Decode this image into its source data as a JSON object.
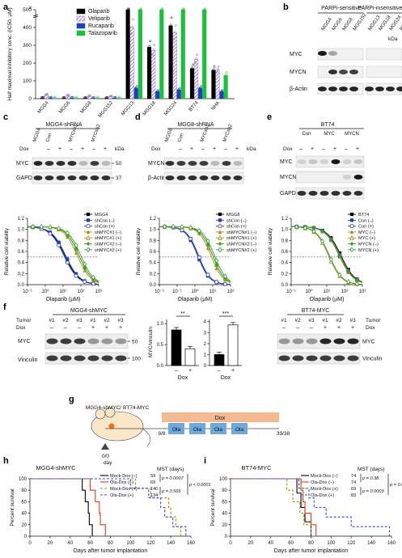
{
  "panels": {
    "a": "a",
    "b": "b",
    "c": "c",
    "d": "d",
    "e": "e",
    "f": "f",
    "g": "g",
    "h": "h",
    "i": "i"
  },
  "a": {
    "ylabel": "Half maximal inhibitory conc. (IC50, µM)",
    "ytick_top": "≥",
    "yticks": [
      "0",
      "100",
      "200",
      "300",
      "400",
      "500"
    ],
    "categories": [
      "MGG4",
      "MGG6",
      "MGG8",
      "MGG152",
      "MGG13",
      "MGG18",
      "MGG24",
      "BT74",
      "NHA"
    ],
    "legend": [
      {
        "label": "Olaparib",
        "color": "#000000"
      },
      {
        "label": "Veliparib",
        "color": "#8a5cc9"
      },
      {
        "label": "Rucaparib",
        "color": "#1f3fbf"
      },
      {
        "label": "Talazoparib",
        "color": "#19c13a"
      }
    ]
  },
  "chart_data": {
    "type": "bar",
    "title": "",
    "ylabel": "Half maximal inhibitory conc. (IC50, µM)",
    "ylim": [
      0,
      500
    ],
    "categories": [
      "MGG4",
      "MGG6",
      "MGG8",
      "MGG152",
      "MGG13",
      "MGG18",
      "MGG24",
      "BT74",
      "NHA"
    ],
    "series": [
      {
        "name": "Olaparib",
        "values": [
          3,
          2,
          2,
          2,
          500,
          290,
          410,
          170,
          160
        ]
      },
      {
        "name": "Veliparib",
        "values": [
          20,
          15,
          12,
          10,
          400,
          270,
          370,
          220,
          160
        ]
      },
      {
        "name": "Rucaparib",
        "values": [
          4,
          3,
          2,
          3,
          60,
          40,
          50,
          60,
          40
        ]
      },
      {
        "name": "Talazoparib",
        "values": [
          1,
          1,
          1,
          1,
          500,
          500,
          500,
          500,
          130
        ]
      }
    ]
  },
  "b": {
    "groups": [
      "PARPi-sensitive",
      "PARPi-insensitive"
    ],
    "lanes": [
      "MGG4",
      "MGG6",
      "MGG8",
      "MGG152",
      "MGG13",
      "MGG18",
      "MGG24",
      "BT74"
    ],
    "rows": [
      "MYC",
      "MYCN",
      "β-Actin"
    ],
    "kda_label": "kDa",
    "markers": [
      "50",
      "50",
      "37"
    ]
  },
  "c": {
    "title": "MGG4-shRNA",
    "lane_labels": [
      "MGG4",
      "Con",
      "MYCsh1",
      "MYCsh2"
    ],
    "dox_label": "Dox",
    "dox_signs": [
      "–",
      "+",
      "–",
      "+",
      "–",
      "+"
    ],
    "rows": [
      "MYC",
      "GAPDH"
    ],
    "kda_label": "kDa",
    "markers": [
      "50",
      "37"
    ],
    "ylabel": "Relative cell viability",
    "xlabel": "Olaparib (µM)",
    "xticks": [
      "10⁻¹",
      "10⁰",
      "10¹",
      "10²",
      "10³"
    ],
    "yticks": [
      "0.0",
      "0.2",
      "0.4",
      "0.6",
      "0.8",
      "1.0",
      "1.2"
    ],
    "legend": [
      {
        "label": "MGG4",
        "color": "#000000",
        "marker": "square"
      },
      {
        "label": "shCon (–)",
        "color": "#1f3fbf",
        "marker": "square"
      },
      {
        "label": "shCon (+)",
        "color": "#1f3fbf",
        "marker": "circle-open"
      },
      {
        "label": "shMYC#1 (–)",
        "color": "#b8860b",
        "marker": "tri"
      },
      {
        "label": "shMYC#1 (+)",
        "color": "#b8860b",
        "marker": "tri-open"
      },
      {
        "label": "shMYC#2 (–)",
        "color": "#2ea02e",
        "marker": "diamond"
      },
      {
        "label": "shMYC#2 (+)",
        "color": "#2ea02e",
        "marker": "diamond-open"
      }
    ]
  },
  "d": {
    "title": "MGG8-shRNA",
    "lane_labels": [
      "MGG8",
      "Con",
      "MYCsh1",
      "MYCsh2"
    ],
    "dox_label": "Dox",
    "dox_signs": [
      "–",
      "+",
      "–",
      "+",
      "–",
      "+"
    ],
    "rows": [
      "MYCN",
      "β-Actin"
    ],
    "kda_label": "kDa",
    "ylabel": "Relative cell viability",
    "xlabel": "Olaparib (µM)",
    "xticks": [
      "10⁻²",
      "10⁻¹",
      "10⁰",
      "10¹",
      "10²"
    ],
    "yticks": [
      "0.0",
      "0.2",
      "0.4",
      "0.6",
      "0.8",
      "1.0",
      "1.2"
    ],
    "legend": [
      {
        "label": "MGG8",
        "color": "#000000",
        "marker": "square"
      },
      {
        "label": "shCon (–)",
        "color": "#1f3fbf",
        "marker": "square"
      },
      {
        "label": "shCon (+)",
        "color": "#1f3fbf",
        "marker": "circle-open"
      },
      {
        "label": "shMYCN#1 (–)",
        "color": "#b8860b",
        "marker": "tri"
      },
      {
        "label": "shMYCN#1 (+)",
        "color": "#b8860b",
        "marker": "tri-open"
      },
      {
        "label": "shMYCN#2 (–)",
        "color": "#2ea02e",
        "marker": "diamond"
      },
      {
        "label": "shMYCN#2 (+)",
        "color": "#2ea02e",
        "marker": "diamond-open"
      }
    ]
  },
  "e": {
    "title": "BT74",
    "lane_labels": [
      "Con",
      "MYC",
      "MYCN"
    ],
    "dox_label": "Dox",
    "dox_signs": [
      "–",
      "+",
      "–",
      "+",
      "–",
      "+"
    ],
    "rows": [
      "MYC",
      "MYCN",
      "GAPDH"
    ],
    "ylabel": "Relative cell viability",
    "xlabel": "Olaparib (µM)",
    "xticks": [
      "10⁻¹",
      "10⁰",
      "10¹",
      "10²",
      "10³"
    ],
    "yticks": [
      "0.0",
      "0.2",
      "0.4",
      "0.6",
      "0.8",
      "1.0",
      "1.2"
    ],
    "legend": [
      {
        "label": "BT74",
        "color": "#000000",
        "marker": "square"
      },
      {
        "label": "Con (–)",
        "color": "#1f3fbf",
        "marker": "square"
      },
      {
        "label": "Con (+)",
        "color": "#1f3fbf",
        "marker": "circle-open"
      },
      {
        "label": "MYC (–)",
        "color": "#b8860b",
        "marker": "tri"
      },
      {
        "label": "MYC (+)",
        "color": "#b8860b",
        "marker": "tri-open"
      },
      {
        "label": "MYCN (–)",
        "color": "#2ea02e",
        "marker": "diamond"
      },
      {
        "label": "MYCN (+)",
        "color": "#2ea02e",
        "marker": "diamond-open"
      }
    ]
  },
  "f": {
    "left_title": "MGG4-shMYC",
    "right_title": "BT74-MYC",
    "tumor_label": "Tumor",
    "dox_label": "Dox",
    "tumors": [
      "#1",
      "#2",
      "#3",
      "#1",
      "#2",
      "#3"
    ],
    "dox_signs": [
      "–",
      "–",
      "–",
      "+",
      "+",
      "+"
    ],
    "rows": [
      "MYC",
      "Vinculin"
    ],
    "markers": [
      "50",
      "100"
    ],
    "bar_ylabel": "MYC/vinculin",
    "bar_xlabel": "Dox",
    "bar_signs": [
      "–",
      "+"
    ],
    "sig_left": "**",
    "sig_right": "***",
    "left_yticks": [
      "0.0",
      "0.5",
      "1.0"
    ],
    "right_yticks": [
      "0",
      "1",
      "2",
      "3",
      "4"
    ]
  },
  "g": {
    "model": "MGG4-shMYC/ BT74-MYC",
    "dox_bar": "Dox",
    "start": "0/0",
    "day": "day",
    "d1": "9/8",
    "d2": "39/38",
    "ola": [
      "Ola",
      "Ola",
      "Ola",
      "Ola"
    ]
  },
  "h": {
    "title": "MGG4-shMYC",
    "ylabel": "Percent survival",
    "xlabel": "Days after tumor implantation",
    "xticks": [
      "0",
      "20",
      "40",
      "60",
      "80",
      "100",
      "120",
      "140",
      "160"
    ],
    "yticks": [
      "0",
      "20",
      "40",
      "60",
      "80",
      "100"
    ],
    "mst_label": "MST (days)",
    "legend": [
      {
        "label": "Mock-Dox (–)",
        "mst": "59",
        "color": "#000000",
        "dash": ""
      },
      {
        "label": "Ola-Dox (–)",
        "mst": "69",
        "color": "#e8381a",
        "dash": ""
      },
      {
        "label": "Mock-Dox (+)",
        "mst": "140",
        "color": "#b8860b",
        "dash": "3,2"
      },
      {
        "label": "Ola-Dox (+)",
        "mst": "134",
        "color": "#2b52d6",
        "dash": "3,2"
      }
    ],
    "p1": "p = 0.0007",
    "p2": "p < 0.0001",
    "p3": "p = 0.566"
  },
  "i": {
    "title": "BT74-MYC",
    "ylabel": "Percent survival",
    "xlabel": "Days after tumor implantation",
    "xticks": [
      "0",
      "20",
      "40",
      "60",
      "80",
      "100",
      "120",
      "140",
      "160"
    ],
    "yticks": [
      "0",
      "20",
      "40",
      "60",
      "80",
      "100"
    ],
    "mst_label": "MST (days)",
    "legend": [
      {
        "label": "Mock-Dox (–)",
        "mst": "74",
        "color": "#000000",
        "dash": ""
      },
      {
        "label": "Ola-Dox (–)",
        "mst": "74",
        "color": "#e8381a",
        "dash": ""
      },
      {
        "label": "Mock-Dox (+)",
        "mst": "69",
        "color": "#b8860b",
        "dash": "3,2"
      },
      {
        "label": "Ola-Dox (+)",
        "mst": "83",
        "color": "#2b52d6",
        "dash": "3,2"
      }
    ],
    "p1": "p = 0.38",
    "p2": "p = 0.055",
    "p3": "p = 0.0003"
  }
}
